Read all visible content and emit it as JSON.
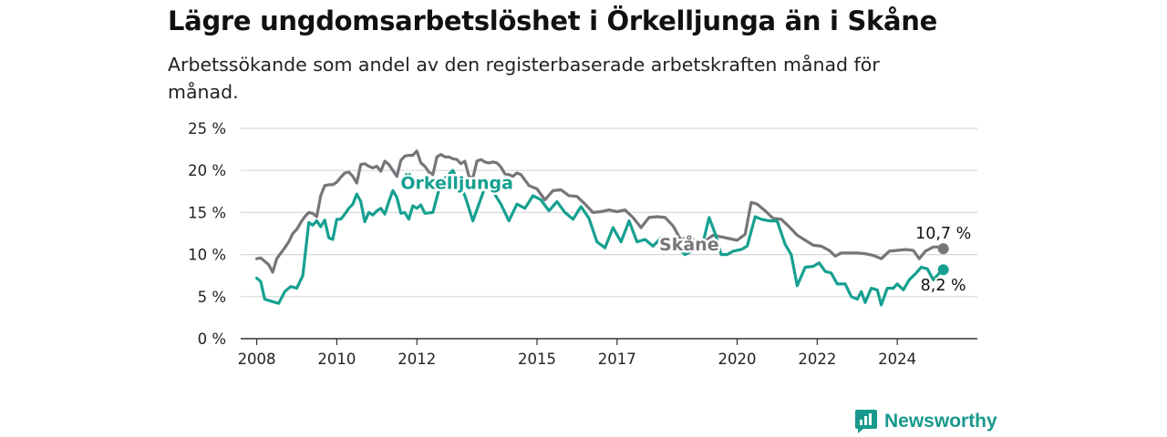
{
  "title": "Lägre ungdomsarbetslöshet i Örkelljunga än i Skåne",
  "subtitle": "Arbetssökande som andel av den registerbaserade arbetskraften månad för månad.",
  "brand": "Newsworthy",
  "colors": {
    "orkelljunga": "#16a090",
    "skane": "#77757a",
    "grid": "#d7d7d7",
    "axis": "#333333"
  },
  "chart_data": {
    "type": "line",
    "title": "Lägre ungdomsarbetslöshet i Örkelljunga än i Skåne",
    "subtitle": "Arbetssökande som andel av den registerbaserade arbetskraften månad för månad.",
    "xlabel": "",
    "ylabel": "",
    "xlim": [
      2007.6,
      2026.0
    ],
    "ylim": [
      0,
      25
    ],
    "x_ticks": [
      2008,
      2010,
      2012,
      2015,
      2017,
      2020,
      2022,
      2024
    ],
    "x_tick_labels": [
      "2008",
      "2010",
      "2012",
      "2015",
      "2017",
      "2020",
      "2022",
      "2024"
    ],
    "y_ticks": [
      0,
      5,
      10,
      15,
      20,
      25
    ],
    "y_tick_labels": [
      "0 %",
      "5 %",
      "10 %",
      "15 %",
      "20 %",
      "25 %"
    ],
    "grid": true,
    "legend": "inline labels",
    "series": [
      {
        "name": "Skåne",
        "color": "#77757a",
        "end_label": "10,7 %",
        "points": [
          [
            2008.0,
            9.5
          ],
          [
            2008.1,
            9.6
          ],
          [
            2008.3,
            8.8
          ],
          [
            2008.4,
            7.9
          ],
          [
            2008.5,
            9.5
          ],
          [
            2008.7,
            10.8
          ],
          [
            2008.8,
            11.5
          ],
          [
            2008.9,
            12.5
          ],
          [
            2009.0,
            13.0
          ],
          [
            2009.1,
            13.8
          ],
          [
            2009.2,
            14.5
          ],
          [
            2009.3,
            15.0
          ],
          [
            2009.4,
            14.9
          ],
          [
            2009.5,
            14.5
          ],
          [
            2009.6,
            17.0
          ],
          [
            2009.7,
            18.2
          ],
          [
            2009.8,
            18.3
          ],
          [
            2009.9,
            18.3
          ],
          [
            2010.0,
            18.6
          ],
          [
            2010.1,
            19.2
          ],
          [
            2010.2,
            19.7
          ],
          [
            2010.3,
            19.8
          ],
          [
            2010.4,
            19.3
          ],
          [
            2010.5,
            18.5
          ],
          [
            2010.6,
            20.7
          ],
          [
            2010.7,
            20.8
          ],
          [
            2010.8,
            20.5
          ],
          [
            2010.9,
            20.3
          ],
          [
            2011.0,
            20.5
          ],
          [
            2011.1,
            19.9
          ],
          [
            2011.2,
            21.1
          ],
          [
            2011.3,
            20.7
          ],
          [
            2011.4,
            20.0
          ],
          [
            2011.5,
            19.3
          ],
          [
            2011.6,
            21.2
          ],
          [
            2011.7,
            21.7
          ],
          [
            2011.8,
            21.8
          ],
          [
            2011.9,
            21.8
          ],
          [
            2012.0,
            22.3
          ],
          [
            2012.1,
            20.9
          ],
          [
            2012.2,
            20.5
          ],
          [
            2012.3,
            19.8
          ],
          [
            2012.4,
            19.5
          ],
          [
            2012.5,
            21.6
          ],
          [
            2012.6,
            21.9
          ],
          [
            2012.7,
            21.6
          ],
          [
            2012.8,
            21.6
          ],
          [
            2012.9,
            21.4
          ],
          [
            2013.0,
            21.3
          ],
          [
            2013.1,
            20.8
          ],
          [
            2013.2,
            21.1
          ],
          [
            2013.3,
            19.3
          ],
          [
            2013.4,
            19.1
          ],
          [
            2013.5,
            21.1
          ],
          [
            2013.6,
            21.3
          ],
          [
            2013.7,
            21.0
          ],
          [
            2013.8,
            20.9
          ],
          [
            2013.9,
            21.0
          ],
          [
            2014.0,
            20.9
          ],
          [
            2014.1,
            20.4
          ],
          [
            2014.2,
            19.6
          ],
          [
            2014.3,
            19.5
          ],
          [
            2014.4,
            19.3
          ],
          [
            2014.5,
            19.7
          ],
          [
            2014.6,
            19.5
          ],
          [
            2014.8,
            18.2
          ],
          [
            2015.0,
            17.8
          ],
          [
            2015.2,
            16.5
          ],
          [
            2015.4,
            17.6
          ],
          [
            2015.6,
            17.7
          ],
          [
            2015.8,
            17.0
          ],
          [
            2016.0,
            16.9
          ],
          [
            2016.2,
            16.0
          ],
          [
            2016.4,
            15.0
          ],
          [
            2016.6,
            15.1
          ],
          [
            2016.8,
            15.3
          ],
          [
            2017.0,
            15.1
          ],
          [
            2017.2,
            15.3
          ],
          [
            2017.4,
            14.4
          ],
          [
            2017.6,
            13.2
          ],
          [
            2017.8,
            14.4
          ],
          [
            2018.0,
            14.5
          ],
          [
            2018.2,
            14.4
          ],
          [
            2018.4,
            13.4
          ],
          [
            2018.6,
            11.7
          ],
          [
            2018.8,
            12.2
          ],
          [
            2019.0,
            11.5
          ],
          [
            2019.2,
            11.6
          ],
          [
            2019.4,
            12.3
          ],
          [
            2019.6,
            12.1
          ],
          [
            2019.8,
            11.9
          ],
          [
            2020.0,
            11.7
          ],
          [
            2020.2,
            12.4
          ],
          [
            2020.35,
            16.2
          ],
          [
            2020.5,
            16.0
          ],
          [
            2020.7,
            15.2
          ],
          [
            2020.9,
            14.3
          ],
          [
            2021.1,
            14.2
          ],
          [
            2021.3,
            13.3
          ],
          [
            2021.5,
            12.3
          ],
          [
            2021.7,
            11.7
          ],
          [
            2021.9,
            11.1
          ],
          [
            2022.1,
            11.0
          ],
          [
            2022.3,
            10.5
          ],
          [
            2022.45,
            9.8
          ],
          [
            2022.6,
            10.2
          ],
          [
            2022.8,
            10.2
          ],
          [
            2023.0,
            10.2
          ],
          [
            2023.2,
            10.1
          ],
          [
            2023.4,
            9.9
          ],
          [
            2023.6,
            9.5
          ],
          [
            2023.8,
            10.4
          ],
          [
            2024.0,
            10.5
          ],
          [
            2024.2,
            10.6
          ],
          [
            2024.4,
            10.5
          ],
          [
            2024.55,
            9.5
          ],
          [
            2024.7,
            10.4
          ],
          [
            2024.9,
            10.9
          ],
          [
            2025.05,
            10.9
          ],
          [
            2025.15,
            10.7
          ]
        ]
      },
      {
        "name": "Örkelljunga",
        "color": "#16a090",
        "end_label": "8,2 %",
        "points": [
          [
            2008.0,
            7.2
          ],
          [
            2008.1,
            6.8
          ],
          [
            2008.2,
            4.7
          ],
          [
            2008.4,
            4.4
          ],
          [
            2008.55,
            4.2
          ],
          [
            2008.7,
            5.6
          ],
          [
            2008.85,
            6.2
          ],
          [
            2009.0,
            6.0
          ],
          [
            2009.15,
            7.5
          ],
          [
            2009.3,
            13.8
          ],
          [
            2009.4,
            13.5
          ],
          [
            2009.5,
            14.0
          ],
          [
            2009.6,
            13.3
          ],
          [
            2009.7,
            14.1
          ],
          [
            2009.8,
            12.0
          ],
          [
            2009.9,
            11.8
          ],
          [
            2010.0,
            14.2
          ],
          [
            2010.1,
            14.2
          ],
          [
            2010.2,
            14.8
          ],
          [
            2010.3,
            15.5
          ],
          [
            2010.4,
            16.0
          ],
          [
            2010.5,
            17.2
          ],
          [
            2010.6,
            16.3
          ],
          [
            2010.7,
            13.9
          ],
          [
            2010.8,
            15.0
          ],
          [
            2010.9,
            14.7
          ],
          [
            2011.0,
            15.2
          ],
          [
            2011.1,
            15.5
          ],
          [
            2011.2,
            14.8
          ],
          [
            2011.3,
            16.3
          ],
          [
            2011.4,
            17.6
          ],
          [
            2011.5,
            16.8
          ],
          [
            2011.6,
            14.9
          ],
          [
            2011.7,
            15.0
          ],
          [
            2011.8,
            14.2
          ],
          [
            2011.9,
            15.8
          ],
          [
            2012.0,
            15.5
          ],
          [
            2012.1,
            15.9
          ],
          [
            2012.2,
            14.9
          ],
          [
            2012.4,
            15.0
          ],
          [
            2012.6,
            18.6
          ],
          [
            2012.9,
            20.0
          ],
          [
            2013.2,
            17.0
          ],
          [
            2013.4,
            14.0
          ],
          [
            2013.7,
            18.0
          ],
          [
            2013.9,
            17.5
          ],
          [
            2014.1,
            16.0
          ],
          [
            2014.3,
            14.0
          ],
          [
            2014.5,
            16.0
          ],
          [
            2014.7,
            15.5
          ],
          [
            2014.9,
            17.0
          ],
          [
            2015.1,
            16.5
          ],
          [
            2015.3,
            15.2
          ],
          [
            2015.5,
            16.3
          ],
          [
            2015.7,
            15.0
          ],
          [
            2015.9,
            14.2
          ],
          [
            2016.1,
            15.7
          ],
          [
            2016.3,
            14.3
          ],
          [
            2016.5,
            11.5
          ],
          [
            2016.7,
            10.8
          ],
          [
            2016.9,
            13.2
          ],
          [
            2017.1,
            11.5
          ],
          [
            2017.3,
            14.0
          ],
          [
            2017.5,
            11.5
          ],
          [
            2017.7,
            11.8
          ],
          [
            2017.9,
            11.0
          ],
          [
            2018.1,
            12.0
          ],
          [
            2018.3,
            11.3
          ],
          [
            2018.5,
            10.8
          ],
          [
            2018.7,
            10.0
          ],
          [
            2018.9,
            10.5
          ],
          [
            2019.1,
            10.5
          ],
          [
            2019.3,
            14.4
          ],
          [
            2019.45,
            12.5
          ],
          [
            2019.6,
            10.0
          ],
          [
            2019.75,
            10.0
          ],
          [
            2019.9,
            10.4
          ],
          [
            2020.1,
            10.6
          ],
          [
            2020.25,
            11.0
          ],
          [
            2020.45,
            14.5
          ],
          [
            2020.6,
            14.2
          ],
          [
            2020.8,
            14.0
          ],
          [
            2021.0,
            14.0
          ],
          [
            2021.2,
            11.2
          ],
          [
            2021.35,
            10.0
          ],
          [
            2021.5,
            6.3
          ],
          [
            2021.7,
            8.5
          ],
          [
            2021.9,
            8.6
          ],
          [
            2022.05,
            9.0
          ],
          [
            2022.2,
            8.0
          ],
          [
            2022.35,
            7.8
          ],
          [
            2022.5,
            6.5
          ],
          [
            2022.7,
            6.5
          ],
          [
            2022.85,
            5.0
          ],
          [
            2023.0,
            4.7
          ],
          [
            2023.1,
            5.6
          ],
          [
            2023.2,
            4.3
          ],
          [
            2023.35,
            6.0
          ],
          [
            2023.5,
            5.8
          ],
          [
            2023.6,
            4.0
          ],
          [
            2023.75,
            6.0
          ],
          [
            2023.9,
            6.0
          ],
          [
            2024.0,
            6.5
          ],
          [
            2024.15,
            5.8
          ],
          [
            2024.3,
            7.0
          ],
          [
            2024.45,
            7.7
          ],
          [
            2024.6,
            8.5
          ],
          [
            2024.75,
            8.3
          ],
          [
            2024.9,
            7.0
          ],
          [
            2025.05,
            7.8
          ],
          [
            2025.15,
            8.2
          ]
        ]
      }
    ],
    "inline_labels": [
      "Örkelljunga",
      "Skåne"
    ]
  }
}
